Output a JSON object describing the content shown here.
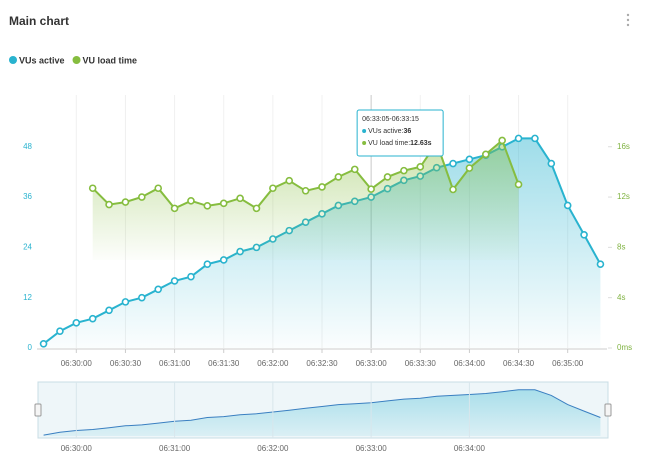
{
  "header": {
    "title": "Main chart"
  },
  "chart_data": {
    "type": "line",
    "x": [
      "06:29:40",
      "06:29:50",
      "06:30:00",
      "06:30:10",
      "06:30:20",
      "06:30:30",
      "06:30:40",
      "06:30:50",
      "06:31:00",
      "06:31:10",
      "06:31:20",
      "06:31:30",
      "06:31:40",
      "06:31:50",
      "06:32:00",
      "06:32:10",
      "06:32:20",
      "06:32:30",
      "06:32:40",
      "06:32:50",
      "06:33:00",
      "06:33:10",
      "06:33:20",
      "06:33:30",
      "06:33:40",
      "06:33:50",
      "06:34:00",
      "06:34:10",
      "06:34:20",
      "06:34:30",
      "06:34:40",
      "06:34:50",
      "06:35:00",
      "06:35:10",
      "06:35:20"
    ],
    "series": [
      {
        "name": "VUs active",
        "color": "#29b3cf",
        "values": [
          1,
          4,
          6,
          7,
          9,
          11,
          12,
          14,
          16,
          17,
          20,
          21,
          23,
          24,
          26,
          28,
          30,
          32,
          34,
          35,
          36,
          38,
          40,
          41,
          43,
          44,
          45,
          46,
          48,
          50,
          50,
          44,
          34,
          27,
          20
        ]
      },
      {
        "name": "VU load time",
        "color": "#86bd3f",
        "axis": "y2",
        "values": [
          null,
          null,
          null,
          12.7,
          11.4,
          11.6,
          12,
          12.7,
          11.1,
          11.7,
          11.3,
          11.5,
          11.9,
          11.1,
          12.7,
          13.3,
          12.5,
          12.8,
          13.6,
          14.2,
          12.63,
          13.6,
          14.1,
          14.4,
          16.3,
          12.6,
          14.3,
          15.4,
          16.5,
          13,
          null,
          null,
          null,
          null,
          null
        ]
      }
    ],
    "xlim": [
      "06:29:36",
      "06:35:24"
    ],
    "xticks": [
      "06:30:00",
      "06:30:30",
      "06:31:00",
      "06:31:30",
      "06:32:00",
      "06:32:30",
      "06:33:00",
      "06:33:30",
      "06:34:00",
      "06:34:30",
      "06:35:00"
    ],
    "ylim": [
      0,
      52
    ],
    "yticks": [
      0,
      12,
      24,
      36,
      48
    ],
    "y2lim": [
      0,
      17.33
    ],
    "y2ticks": [
      {
        "value": 0,
        "label": "0ms"
      },
      {
        "value": 4,
        "label": "4s"
      },
      {
        "value": 8,
        "label": "8s"
      },
      {
        "value": 12,
        "label": "12s"
      },
      {
        "value": 16,
        "label": "16s"
      }
    ],
    "grid": true,
    "legend": "top-left",
    "navigator_xticks": [
      "06:30:00",
      "06:31:00",
      "06:32:00",
      "06:33:00",
      "06:34:00"
    ],
    "tooltip": {
      "x": "06:33:00",
      "title": "06:33:05-06:33:15",
      "items": [
        {
          "label": "VUs active: ",
          "value": "36"
        },
        {
          "label": "VU load time: ",
          "value": "12.63s"
        }
      ]
    }
  }
}
